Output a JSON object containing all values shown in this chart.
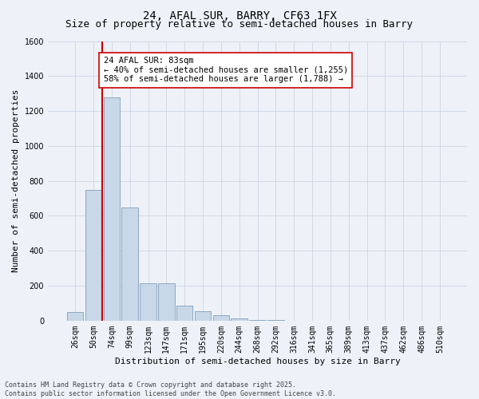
{
  "title": "24, AFAL SUR, BARRY, CF63 1FX",
  "subtitle": "Size of property relative to semi-detached houses in Barry",
  "xlabel": "Distribution of semi-detached houses by size in Barry",
  "ylabel": "Number of semi-detached properties",
  "footer": "Contains HM Land Registry data © Crown copyright and database right 2025.\nContains public sector information licensed under the Open Government Licence v3.0.",
  "categories": [
    "26sqm",
    "50sqm",
    "74sqm",
    "99sqm",
    "123sqm",
    "147sqm",
    "171sqm",
    "195sqm",
    "220sqm",
    "244sqm",
    "268sqm",
    "292sqm",
    "316sqm",
    "341sqm",
    "365sqm",
    "389sqm",
    "413sqm",
    "437sqm",
    "462sqm",
    "486sqm",
    "510sqm"
  ],
  "values": [
    50,
    750,
    1280,
    650,
    215,
    215,
    85,
    55,
    30,
    15,
    5,
    2,
    0,
    0,
    0,
    0,
    0,
    0,
    0,
    0,
    0
  ],
  "bar_color": "#c8d8e8",
  "bar_edge_color": "#7090b0",
  "vline_color": "#cc0000",
  "vline_index": 1.5,
  "annotation_text": "24 AFAL SUR: 83sqm\n← 40% of semi-detached houses are smaller (1,255)\n58% of semi-detached houses are larger (1,788) →",
  "annotation_box_color": "#ffffff",
  "annotation_box_edge": "#cc0000",
  "ylim": [
    0,
    1600
  ],
  "yticks": [
    0,
    200,
    400,
    600,
    800,
    1000,
    1200,
    1400,
    1600
  ],
  "grid_color": "#d0d8e8",
  "background_color": "#eef2f8",
  "title_fontsize": 10,
  "subtitle_fontsize": 9,
  "axis_label_fontsize": 8,
  "tick_fontsize": 7,
  "footer_fontsize": 6,
  "annotation_fontsize": 7.5
}
